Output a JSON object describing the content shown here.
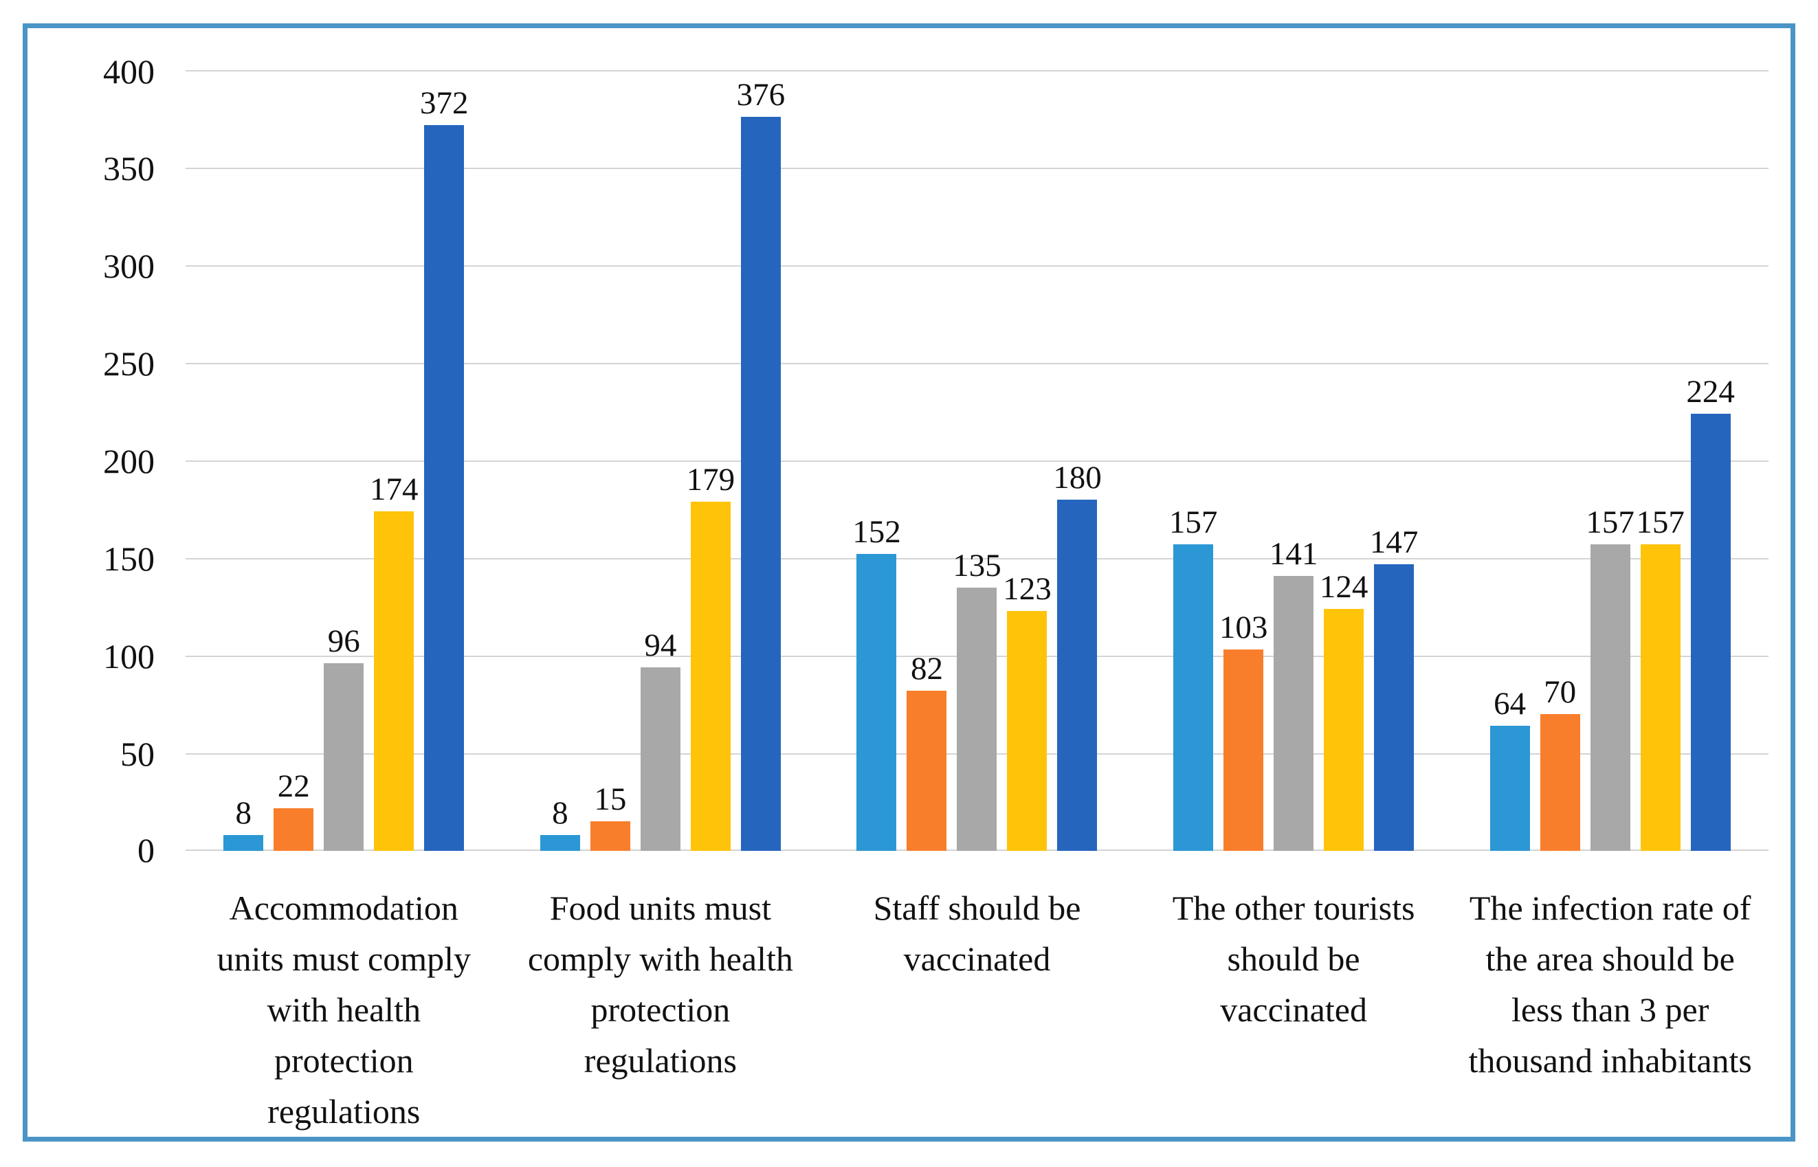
{
  "chart_data": {
    "type": "bar",
    "title": "",
    "xlabel": "",
    "ylabel": "",
    "ylim": [
      0,
      400
    ],
    "ytick_step": 50,
    "grid": true,
    "legend": false,
    "frame_color": "#4a94c6",
    "gridline_color": "#d4d4d4",
    "yticks": [
      "400",
      "350",
      "300",
      "250",
      "200",
      "150",
      "100",
      "50",
      "0"
    ],
    "categories": [
      "Accommodation units must comply with health protection regulations",
      "Food units must comply with health protection regulations",
      "Staff should be vaccinated",
      "The other tourists should be vaccinated",
      "The infection rate of the area should be less than 3 per thousand inhabitants"
    ],
    "series": [
      {
        "name": "light-blue",
        "color": "#2b97d5",
        "values": [
          8,
          8,
          152,
          157,
          64
        ]
      },
      {
        "name": "orange",
        "color": "#f87e2c",
        "values": [
          22,
          15,
          82,
          103,
          70
        ]
      },
      {
        "name": "gray",
        "color": "#a8a8a8",
        "values": [
          96,
          94,
          135,
          141,
          157
        ]
      },
      {
        "name": "yellow",
        "color": "#ffc30a",
        "values": [
          174,
          179,
          123,
          124,
          157
        ]
      },
      {
        "name": "dark-blue",
        "color": "#2565bd",
        "values": [
          372,
          376,
          180,
          147,
          224
        ]
      }
    ]
  }
}
